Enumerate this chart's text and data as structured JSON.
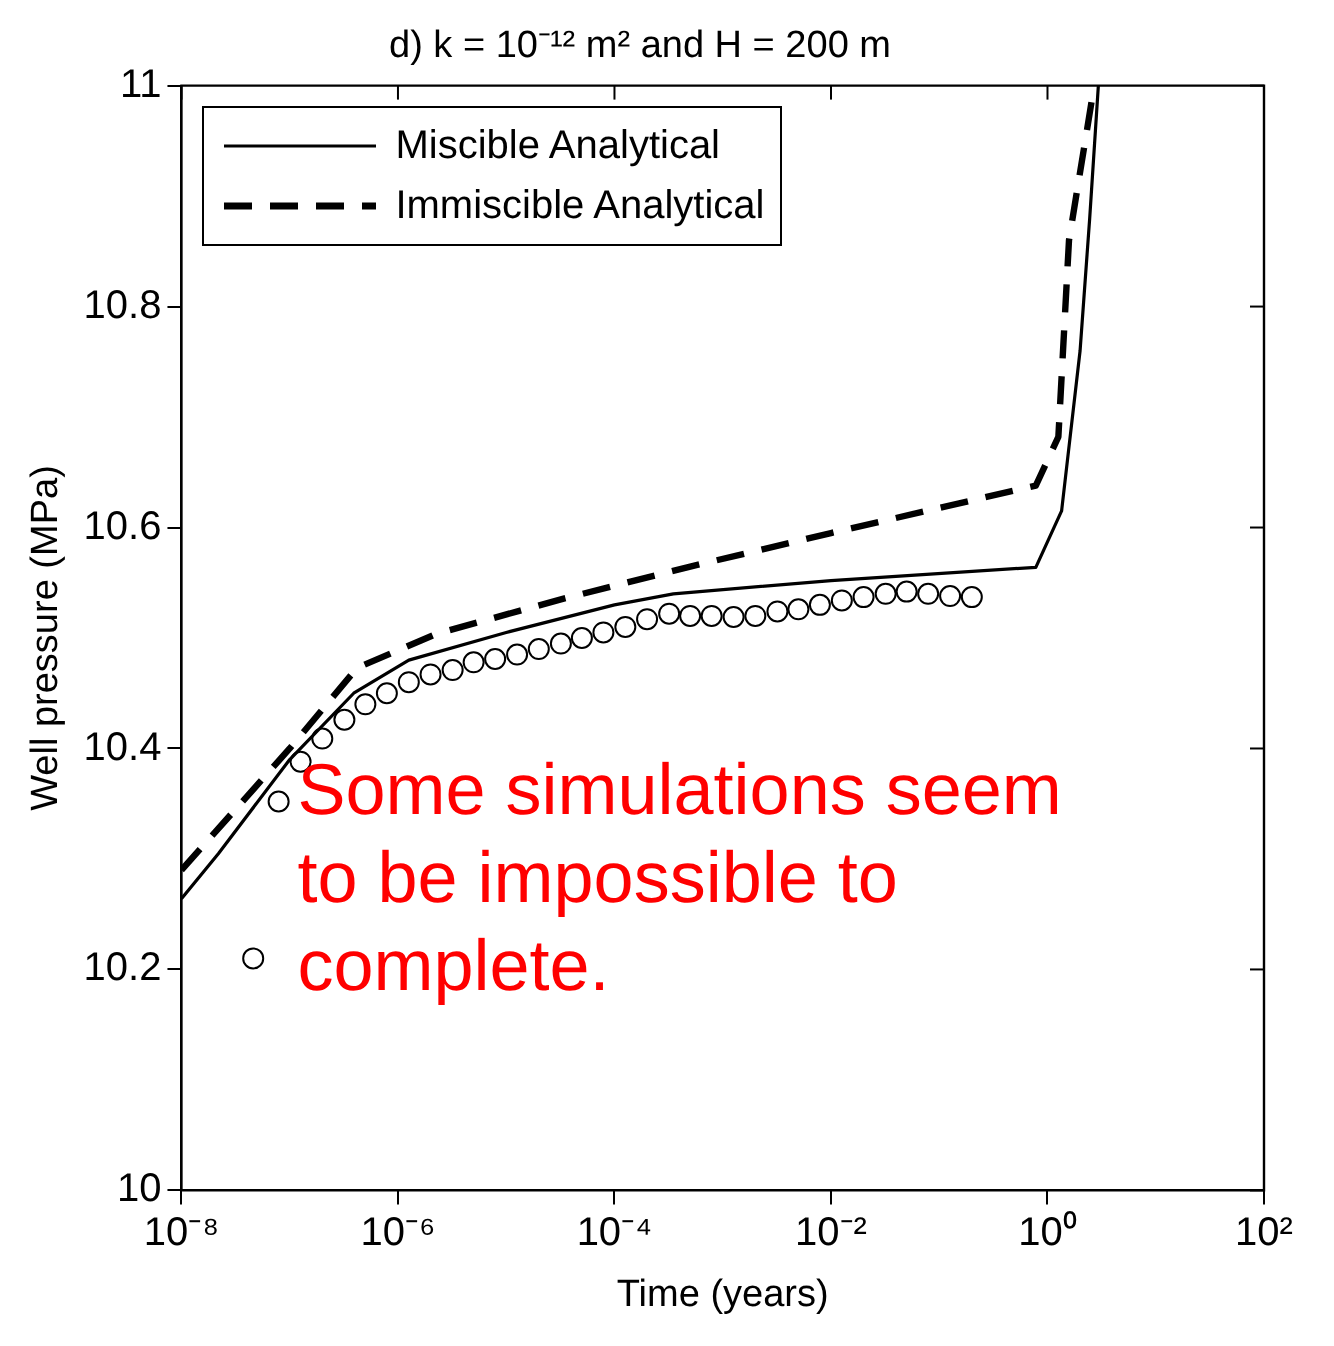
{
  "chart_data": {
    "type": "line",
    "title": "d) k = 10⁻¹² m² and H = 200 m",
    "xlabel": "Time (years)",
    "ylabel": "Well pressure (MPa)",
    "log": "x",
    "xlim": [
      1e-08,
      100
    ],
    "xticks": [
      {
        "value": 1e-08,
        "label": "10⁻⁸"
      },
      {
        "value": 1e-06,
        "label": "10⁻⁶"
      },
      {
        "value": 0.0001,
        "label": "10⁻⁴"
      },
      {
        "value": 0.01,
        "label": "10⁻²"
      },
      {
        "value": 1,
        "label": "10⁰"
      },
      {
        "value": 100,
        "label": "10²"
      }
    ],
    "ylim": [
      10,
      11
    ],
    "yticks": [
      10,
      10.2,
      10.4,
      10.6,
      10.8,
      11
    ],
    "grid": false,
    "legend": "top left",
    "marker": "none",
    "series": [
      {
        "type": "scatter",
        "marker": "circle",
        "color": "#000000",
        "x": [
          4.6e-08,
          7.9e-08,
          1.26e-07,
          2e-07,
          3.2e-07,
          5e-07,
          7.9e-07,
          1.26e-06,
          2e-06,
          3.2e-06,
          5e-06,
          7.9e-06,
          1.26e-05,
          2e-05,
          3.2e-05,
          5e-05,
          7.9e-05,
          0.000126,
          0.0002,
          0.00032,
          0.0005,
          0.00079,
          0.00126,
          0.002,
          0.0032,
          0.005,
          0.0079,
          0.0126,
          0.02,
          0.032,
          0.05,
          0.079,
          0.126,
          0.2
        ],
        "values": [
          10.21,
          10.352,
          10.388,
          10.409,
          10.426,
          10.44,
          10.45,
          10.46,
          10.467,
          10.471,
          10.478,
          10.481,
          10.485,
          10.49,
          10.495,
          10.5,
          10.505,
          10.51,
          10.517,
          10.522,
          10.52,
          10.52,
          10.519,
          10.52,
          10.524,
          10.526,
          10.53,
          10.534,
          10.537,
          10.54,
          10.542,
          10.54,
          10.538,
          10.537
        ]
      },
      {
        "name": "Miscible Analytical",
        "line_style": "solid",
        "color": "#000000",
        "x": [
          1e-08,
          2.2e-08,
          1e-07,
          3.9e-07,
          1.26e-06,
          1e-05,
          0.0001,
          0.00035,
          0.01,
          0.78,
          1.35,
          2.0,
          2.45,
          2.95
        ],
        "values": [
          10.264,
          10.305,
          10.39,
          10.45,
          10.48,
          10.505,
          10.53,
          10.54,
          10.552,
          10.564,
          10.615,
          10.76,
          10.879,
          11.0
        ]
      },
      {
        "name": "Immiscible Analytical",
        "line_style": "dashed",
        "color": "#000000",
        "x": [
          1e-08,
          1e-07,
          4.2e-07,
          2.3e-06,
          3.2e-05,
          0.00047,
          0.01,
          0.78,
          1.26,
          1.58,
          2.7
        ],
        "values": [
          10.29,
          10.4,
          10.473,
          10.504,
          10.535,
          10.564,
          10.595,
          10.638,
          10.682,
          10.86,
          11.0
        ]
      }
    ],
    "annotations": [
      "Some simulations seem to be impossible to complete."
    ]
  }
}
